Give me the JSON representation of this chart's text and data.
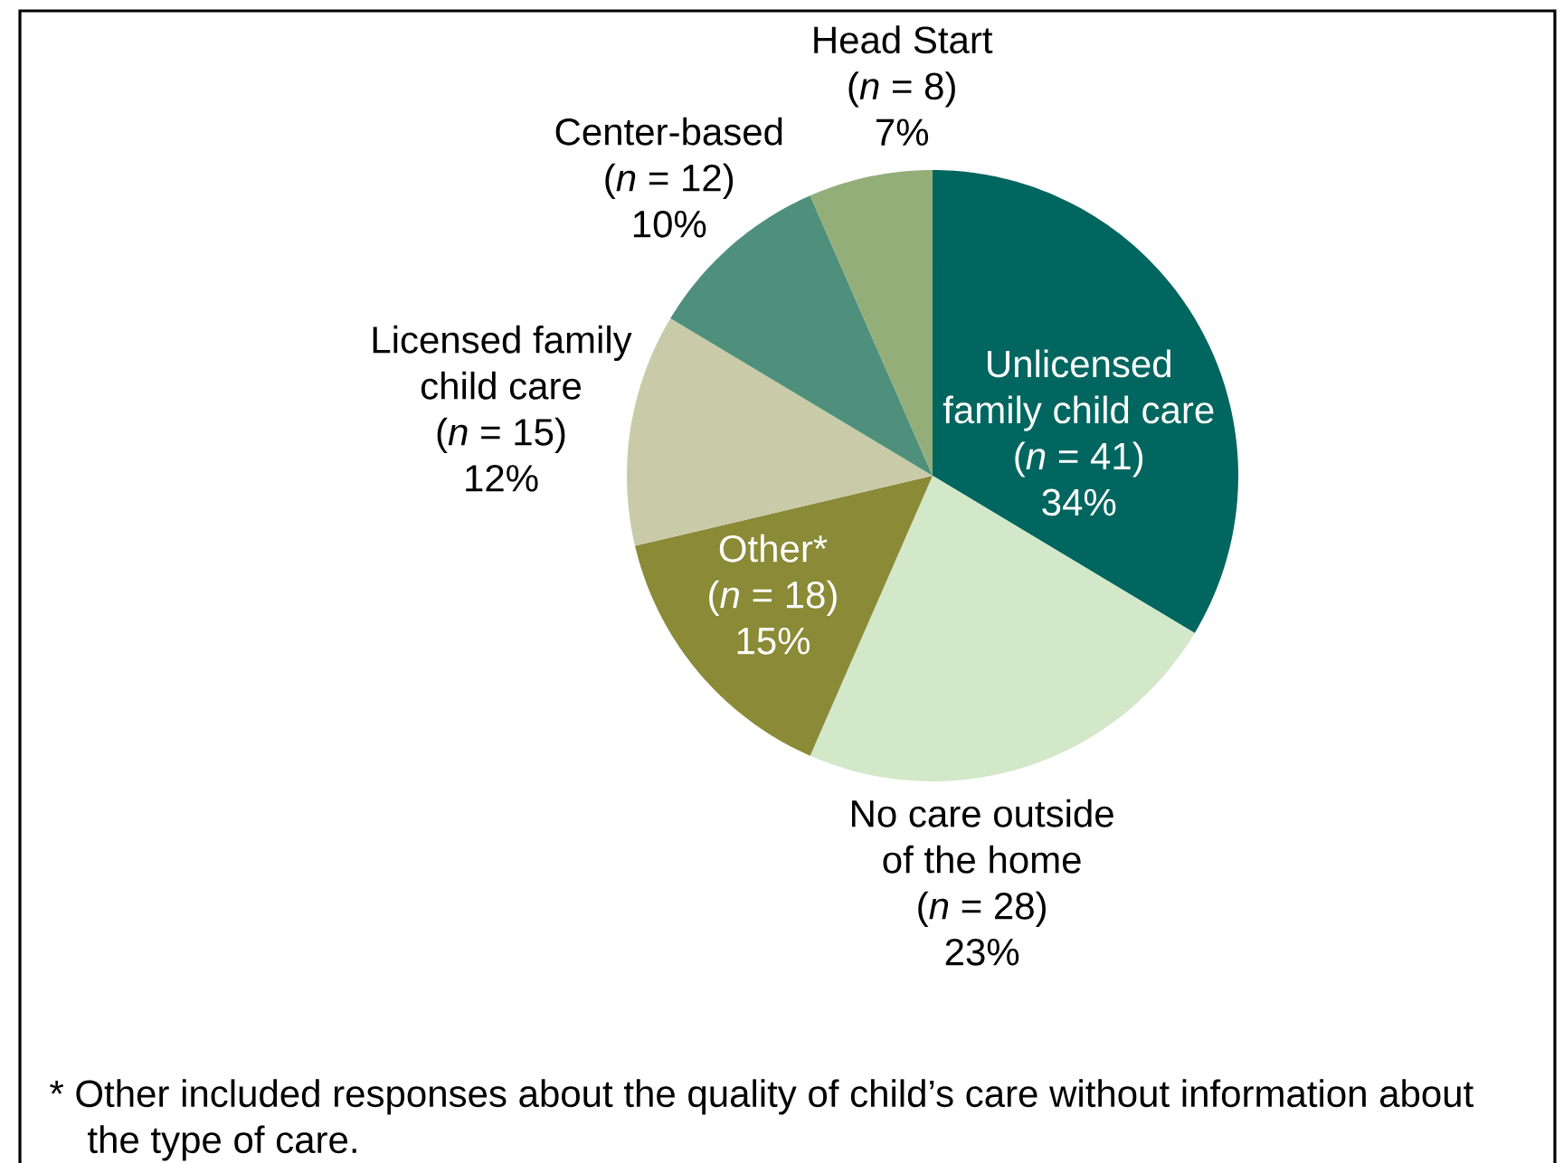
{
  "chart_data": {
    "type": "pie",
    "categories": [
      "Unlicensed family child care",
      "No care outside of the home",
      "Other*",
      "Licensed family child care",
      "Center-based",
      "Head Start"
    ],
    "values": [
      41,
      28,
      18,
      15,
      12,
      8
    ],
    "value_labels": [
      "(*n* = 41) 34%",
      "(*n* = 28) 23%",
      "(*n* = 18) 15%",
      "(*n* = 15) 12%",
      "(*n* = 12) 10%",
      "(*n* = 8) 7%"
    ],
    "colors": [
      "#00665f",
      "#d2e8c8",
      "#8a8a37",
      "#c9cba8",
      "#4f907c",
      "#94ae7a"
    ],
    "annotations": [
      "* Other included responses about the quality of child’s care without information about the type of care."
    ]
  }
}
